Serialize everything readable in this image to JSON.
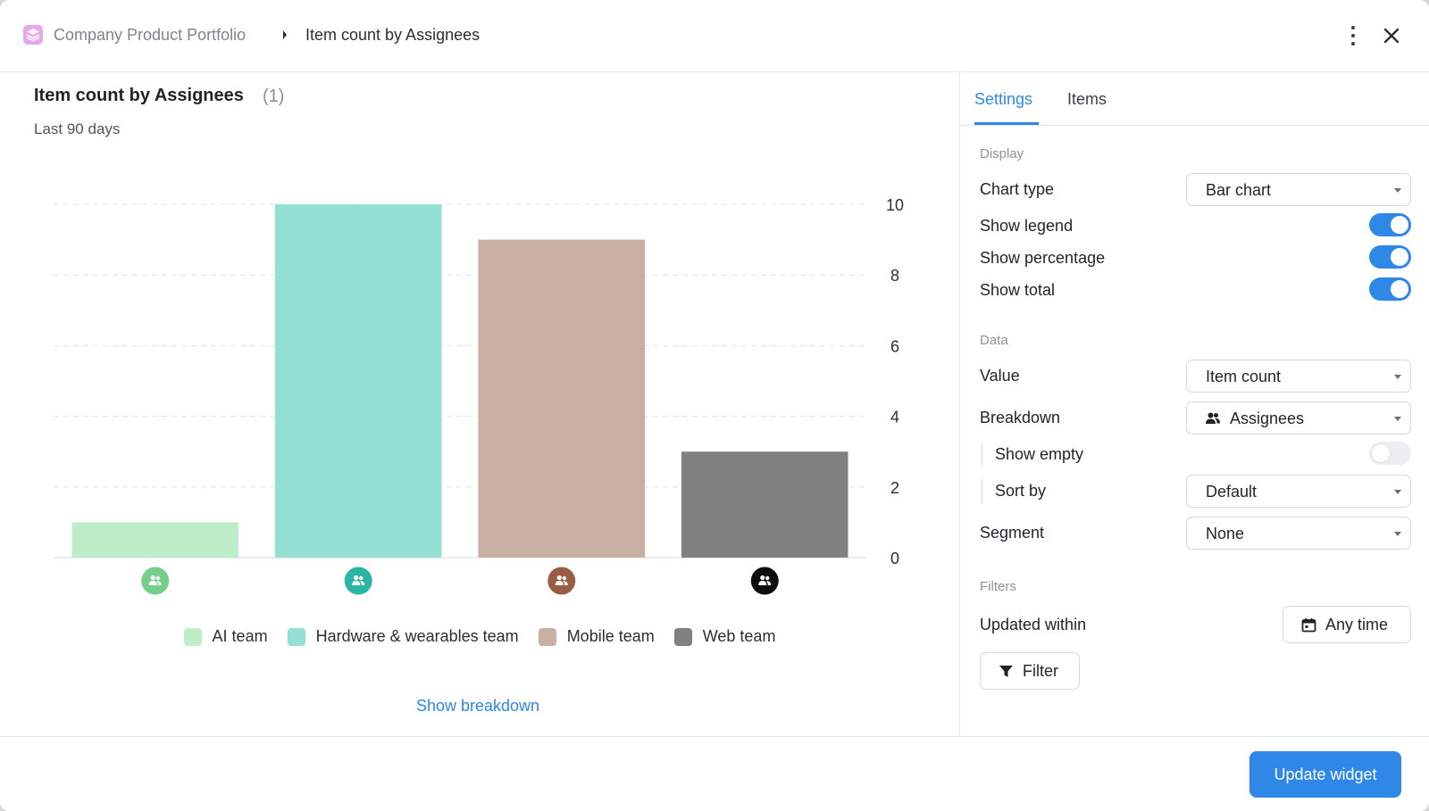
{
  "header": {
    "breadcrumb_parent": "Company Product Portfolio",
    "breadcrumb_current": "Item count by Assignees"
  },
  "widget": {
    "title": "Item count by Assignees",
    "count": "(1)",
    "subtitle": "Last 90 days",
    "show_breakdown": "Show breakdown"
  },
  "chart_data": {
    "type": "bar",
    "categories": [
      "AI team",
      "Hardware & wearables team",
      "Mobile team",
      "Web team"
    ],
    "values": [
      1,
      10,
      9,
      3
    ],
    "colors": [
      "#bdeec8",
      "#95e0d5",
      "#c9afa3",
      "#808080"
    ],
    "icon_colors": [
      "#73d08b",
      "#2bb5a4",
      "#9a5c44",
      "#0d0d0d"
    ],
    "ylim": [
      0,
      10
    ],
    "yticks": [
      "0",
      "2",
      "4",
      "6",
      "8",
      "10"
    ],
    "y_axis_side": "right",
    "grid": true,
    "legend": "bottom-center",
    "title": "Item count by Assignees"
  },
  "settings": {
    "tabs": [
      "Settings",
      "Items"
    ],
    "active_tab": "Settings",
    "display": {
      "section": "Display",
      "chart_type_label": "Chart type",
      "chart_type_value": "Bar chart",
      "show_legend_label": "Show legend",
      "show_legend": true,
      "show_percentage_label": "Show percentage",
      "show_percentage": true,
      "show_total_label": "Show total",
      "show_total": true
    },
    "data": {
      "section": "Data",
      "value_label": "Value",
      "value_value": "Item count",
      "breakdown_label": "Breakdown",
      "breakdown_value": "Assignees",
      "show_empty_label": "Show empty",
      "show_empty": false,
      "sort_by_label": "Sort by",
      "sort_by_value": "Default",
      "segment_label": "Segment",
      "segment_value": "None"
    },
    "filters": {
      "section": "Filters",
      "updated_within_label": "Updated within",
      "updated_within_value": "Any time",
      "filter_button": "Filter"
    }
  },
  "footer": {
    "update_button": "Update widget"
  },
  "colors": {
    "accent": "#2f87e8",
    "breadcrumb_icon": "#e6a8ea"
  },
  "icons": [
    "layers-icon",
    "chevron-right-icon",
    "more-vertical-icon",
    "close-icon",
    "team-icon",
    "calendar-icon",
    "filter-icon",
    "chevron-down-icon"
  ]
}
